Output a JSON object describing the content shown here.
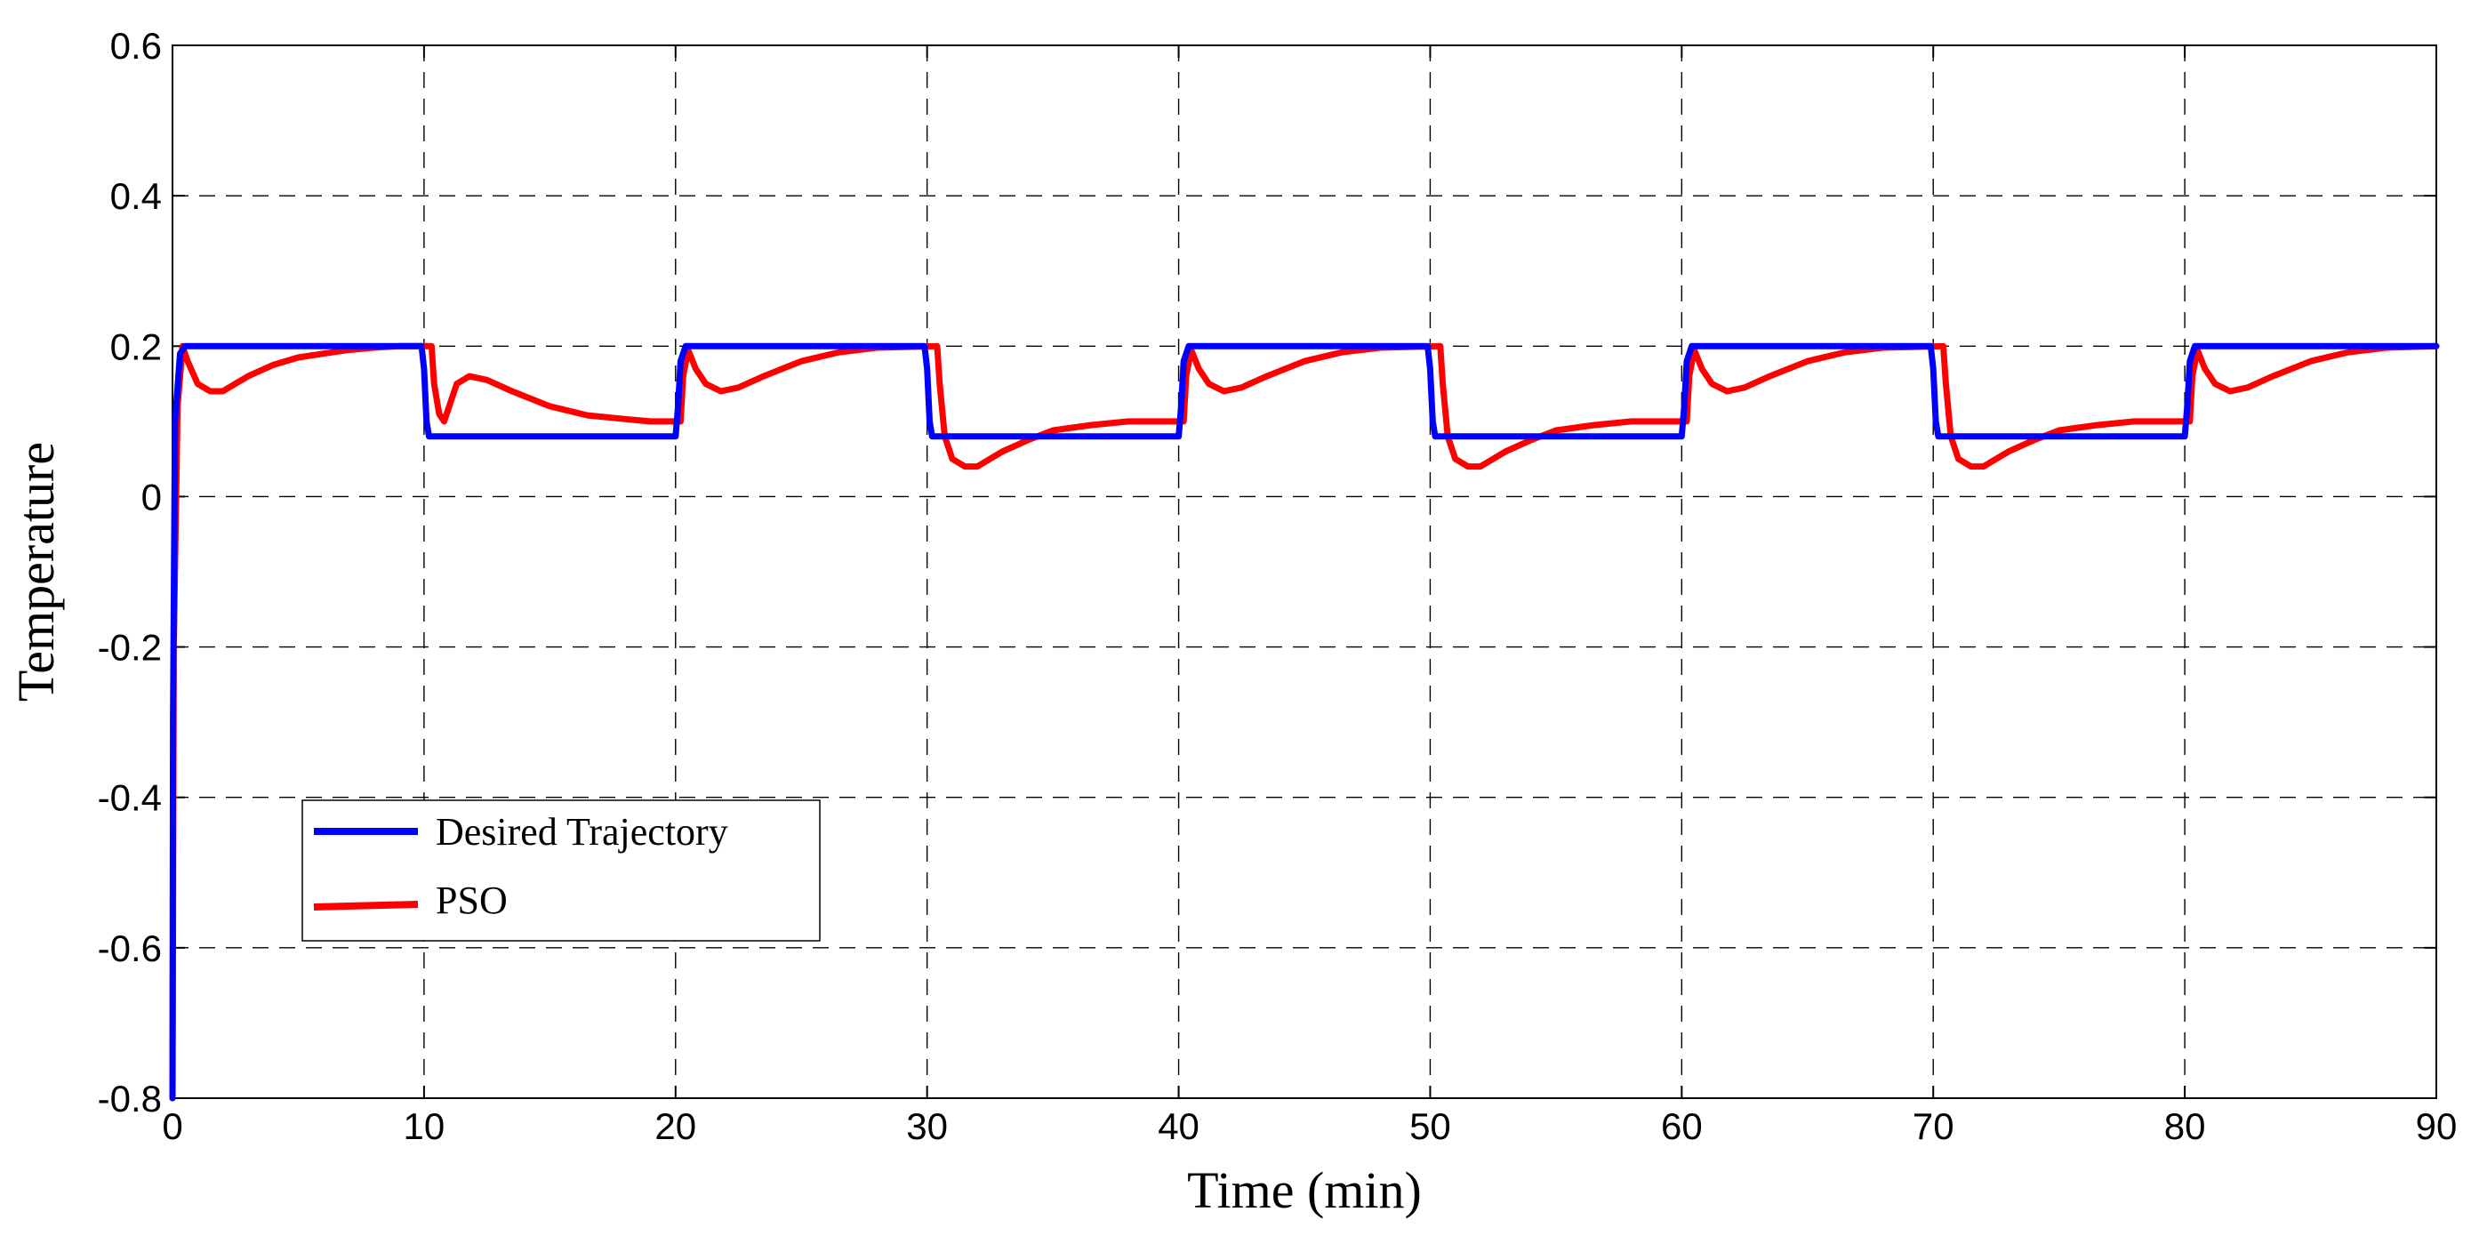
{
  "chart_data": {
    "type": "line",
    "title": "",
    "xlabel": "Time (min)",
    "ylabel": "Temperature",
    "xlim": [
      0,
      90
    ],
    "ylim": [
      -0.8,
      0.6
    ],
    "x_ticks": [
      0,
      10,
      20,
      30,
      40,
      50,
      60,
      70,
      80,
      90
    ],
    "x_tick_labels": [
      "0",
      "10",
      "20",
      "30",
      "40",
      "50",
      "60",
      "70",
      "80",
      "90"
    ],
    "y_ticks": [
      0.6,
      0.4,
      0.2,
      0,
      -0.2,
      -0.4,
      -0.6,
      -0.8
    ],
    "y_tick_labels": [
      "0.6",
      "0.4",
      "0.2",
      "0",
      "-0.2",
      "-0.4",
      "-0.6",
      "-0.8"
    ],
    "grid": true,
    "legend_position": "lower-left",
    "series": [
      {
        "name": "Desired Trajectory",
        "color": "#0000ff",
        "x": [
          0,
          0.02,
          0.1,
          0.3,
          0.5,
          9.9,
          10.0,
          10.1,
          10.2,
          20.0,
          20.1,
          20.2,
          20.4,
          29.9,
          30.0,
          30.1,
          30.2,
          40.0,
          40.1,
          40.2,
          40.4,
          49.9,
          50.0,
          50.1,
          50.2,
          60.0,
          60.1,
          60.2,
          60.4,
          69.9,
          70.0,
          70.1,
          70.2,
          80.0,
          80.1,
          80.2,
          80.4,
          90.0
        ],
        "values": [
          -0.8,
          -0.3,
          0.1,
          0.19,
          0.2,
          0.2,
          0.17,
          0.1,
          0.08,
          0.08,
          0.12,
          0.18,
          0.2,
          0.2,
          0.17,
          0.1,
          0.08,
          0.08,
          0.12,
          0.18,
          0.2,
          0.2,
          0.17,
          0.1,
          0.08,
          0.08,
          0.12,
          0.18,
          0.2,
          0.2,
          0.17,
          0.1,
          0.08,
          0.08,
          0.12,
          0.18,
          0.2,
          0.2
        ]
      },
      {
        "name": "PSO",
        "color": "#ff0000",
        "x": [
          0,
          0.05,
          0.2,
          0.4,
          0.6,
          1.0,
          1.5,
          2.0,
          3.0,
          4.0,
          5.0,
          6.0,
          7.0,
          8.0,
          9.0,
          10.3,
          10.4,
          10.6,
          10.8,
          11.0,
          11.3,
          11.8,
          12.5,
          13.5,
          15.0,
          16.5,
          18.0,
          19.0,
          20.2,
          20.3,
          20.5,
          20.8,
          21.2,
          21.8,
          22.5,
          23.5,
          25.0,
          26.5,
          28.0,
          30.4,
          30.5,
          30.7,
          31.0,
          31.5,
          32.0,
          32.5,
          33.0,
          34.0,
          35.0,
          36.5,
          38.0,
          40.2,
          40.3,
          40.5,
          40.8,
          41.2,
          41.8,
          42.5,
          43.5,
          45.0,
          46.5,
          48.0,
          50.4,
          50.5,
          50.7,
          51.0,
          51.5,
          52.0,
          52.5,
          53.0,
          54.0,
          55.0,
          56.5,
          58.0,
          60.2,
          60.3,
          60.5,
          60.8,
          61.2,
          61.8,
          62.5,
          63.5,
          65.0,
          66.5,
          68.0,
          70.4,
          70.5,
          70.7,
          71.0,
          71.5,
          72.0,
          72.5,
          73.0,
          74.0,
          75.0,
          76.5,
          78.0,
          80.2,
          80.3,
          80.5,
          80.8,
          81.2,
          81.8,
          82.5,
          83.5,
          85.0,
          86.5,
          88.0,
          90.0
        ],
        "values": [
          -0.8,
          -0.2,
          0.12,
          0.2,
          0.18,
          0.15,
          0.14,
          0.14,
          0.16,
          0.175,
          0.185,
          0.19,
          0.195,
          0.198,
          0.2,
          0.2,
          0.15,
          0.11,
          0.1,
          0.12,
          0.15,
          0.16,
          0.155,
          0.14,
          0.12,
          0.108,
          0.103,
          0.1,
          0.1,
          0.16,
          0.195,
          0.17,
          0.15,
          0.14,
          0.145,
          0.16,
          0.18,
          0.192,
          0.198,
          0.2,
          0.15,
          0.08,
          0.05,
          0.04,
          0.04,
          0.05,
          0.06,
          0.075,
          0.088,
          0.095,
          0.1,
          0.1,
          0.16,
          0.195,
          0.17,
          0.15,
          0.14,
          0.145,
          0.16,
          0.18,
          0.192,
          0.198,
          0.2,
          0.15,
          0.08,
          0.05,
          0.04,
          0.04,
          0.05,
          0.06,
          0.075,
          0.088,
          0.095,
          0.1,
          0.1,
          0.16,
          0.195,
          0.17,
          0.15,
          0.14,
          0.145,
          0.16,
          0.18,
          0.192,
          0.198,
          0.2,
          0.15,
          0.08,
          0.05,
          0.04,
          0.04,
          0.05,
          0.06,
          0.075,
          0.088,
          0.095,
          0.1,
          0.1,
          0.16,
          0.195,
          0.17,
          0.15,
          0.14,
          0.145,
          0.16,
          0.18,
          0.192,
          0.198,
          0.2
        ]
      }
    ]
  }
}
